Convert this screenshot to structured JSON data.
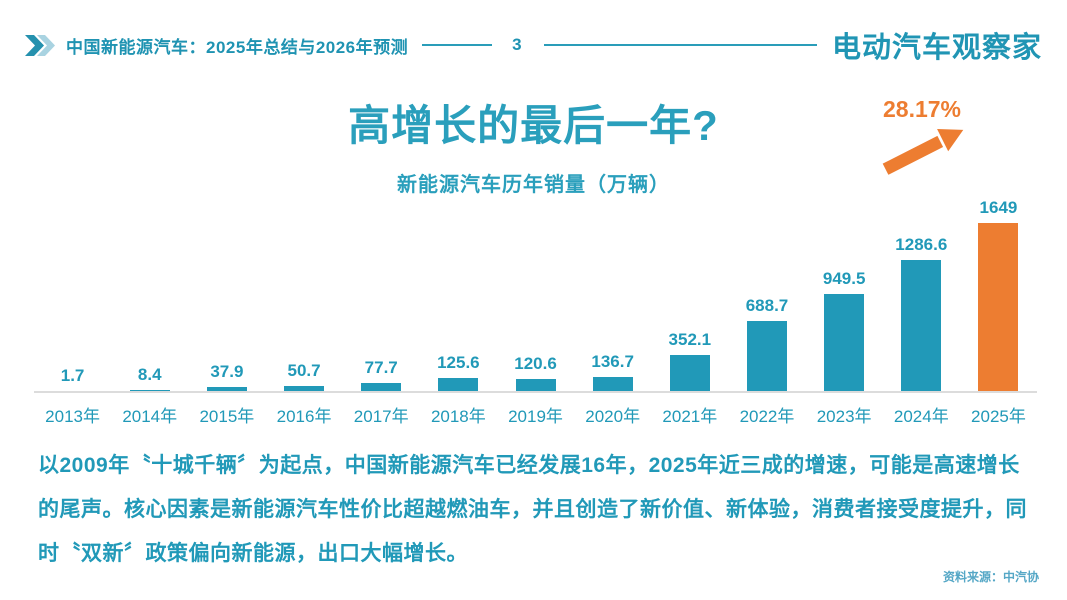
{
  "header": {
    "title": "中国新能源汽车：2025年总结与2026年预测",
    "page_number": "3",
    "logo": "电动汽车观察家"
  },
  "main": {
    "title": "高增长的最后一年?",
    "subtitle": "新能源汽车历年销量（万辆）"
  },
  "chart_data": {
    "type": "bar",
    "title": "新能源汽车历年销量（万辆）",
    "categories": [
      "2013年",
      "2014年",
      "2015年",
      "2016年",
      "2017年",
      "2018年",
      "2019年",
      "2020年",
      "2021年",
      "2022年",
      "2023年",
      "2024年",
      "2025年"
    ],
    "values": [
      1.7,
      8.4,
      37.9,
      50.7,
      77.7,
      125.6,
      120.6,
      136.7,
      352.1,
      688.7,
      949.5,
      1286.6,
      1649
    ],
    "labels": [
      "1.7",
      "8.4",
      "37.9",
      "50.7",
      "77.7",
      "125.6",
      "120.6",
      "136.7",
      "352.1",
      "688.7",
      "949.5",
      "1286.6",
      "1649"
    ],
    "ylim": [
      0,
      1700
    ],
    "grid": false,
    "legend": "none",
    "bar_color": "#2199b8",
    "highlight_color": "#ed7d31",
    "highlight_index": 12,
    "annotation": "28.17%",
    "annotation_meaning": "2025 year-over-year growth rate"
  },
  "commentary": "以2009年〝十城千辆〞为起点，中国新能源汽车已经发展16年，2025年近三成的增速，可能是高速增长的尾声。核心因素是新能源汽车性价比超越燃油车，并且创造了新价值、新体验，消费者接受度提升，同时〝双新〞政策偏向新能源，出口大幅增长。",
  "source": "资料来源：中汽协",
  "colors": {
    "teal": "#2199b8",
    "orange": "#ed7d31",
    "chevron_dark": "#2591ae",
    "chevron_light": "#a9d3e1",
    "baseline_gray": "#dcdcdc"
  }
}
